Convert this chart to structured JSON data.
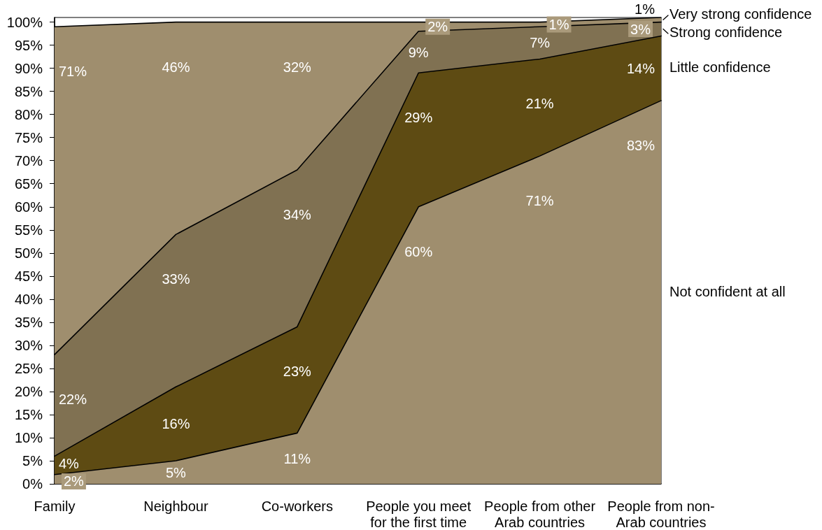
{
  "chart_data": {
    "type": "area",
    "stacked": true,
    "categories": [
      "Family",
      "Neighbour",
      "Co-workers",
      "People you meet for the first time",
      "People from other Arab countries",
      "People from non-Arab countries"
    ],
    "ylim": [
      0,
      101
    ],
    "yticks": [
      {
        "value": 0,
        "label": "0%"
      },
      {
        "value": 5,
        "label": "5%"
      },
      {
        "value": 10,
        "label": "10%"
      },
      {
        "value": 15,
        "label": "15%"
      },
      {
        "value": 20,
        "label": "20%"
      },
      {
        "value": 25,
        "label": "25%"
      },
      {
        "value": 30,
        "label": "30%"
      },
      {
        "value": 35,
        "label": "35%"
      },
      {
        "value": 40,
        "label": "40%"
      },
      {
        "value": 45,
        "label": "45%"
      },
      {
        "value": 50,
        "label": "50%"
      },
      {
        "value": 55,
        "label": "55%"
      },
      {
        "value": 60,
        "label": "60%"
      },
      {
        "value": 65,
        "label": "65%"
      },
      {
        "value": 70,
        "label": "70%"
      },
      {
        "value": 75,
        "label": "75%"
      },
      {
        "value": 80,
        "label": "80%"
      },
      {
        "value": 85,
        "label": "85%"
      },
      {
        "value": 90,
        "label": "90%"
      },
      {
        "value": 95,
        "label": "95%"
      },
      {
        "value": 100,
        "label": "100%"
      }
    ],
    "series": [
      {
        "name": "Not confident at all",
        "color": "#9f8e6e",
        "values": [
          2,
          5,
          11,
          60,
          71,
          83
        ],
        "value_labels": [
          "2%",
          "5%",
          "11%",
          "60%",
          "71%",
          "83%"
        ]
      },
      {
        "name": "Little confidence",
        "color": "#5e4b13",
        "values": [
          4,
          16,
          23,
          29,
          21,
          14
        ],
        "value_labels": [
          "4%",
          "16%",
          "23%",
          "29%",
          "21%",
          "14%"
        ]
      },
      {
        "name": "Strong confidence",
        "color": "#807152",
        "values": [
          22,
          33,
          34,
          9,
          7,
          3
        ],
        "value_labels": [
          "22%",
          "33%",
          "34%",
          "9%",
          "7%",
          "3%"
        ]
      },
      {
        "name": "Very strong confidence",
        "color": "#9f8e6e",
        "values": [
          71,
          46,
          32,
          2,
          1,
          1
        ],
        "value_labels": [
          "71%",
          "46%",
          "32%",
          "2%",
          "1%",
          "1%"
        ]
      }
    ]
  }
}
